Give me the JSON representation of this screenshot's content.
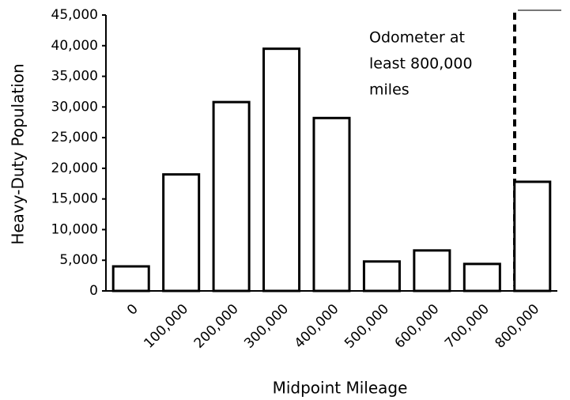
{
  "chart_data": {
    "type": "bar",
    "x_label": "Midpoint Mileage",
    "y_label": "Heavy-Duty Population",
    "annotation": [
      "Odometer at",
      "least 800,000",
      "miles"
    ],
    "categories": [
      "0",
      "100,000",
      "200,000",
      "300,000",
      "400,000",
      "500,000",
      "600,000",
      "700,000",
      "800,000"
    ],
    "values": [
      4000,
      19000,
      30800,
      39500,
      28200,
      4800,
      6600,
      4400,
      17800
    ],
    "color": "#ffffff",
    "ylim": [
      0,
      45000
    ],
    "yticks": [
      0,
      {
        "value": 5000,
        "label": "5,000"
      },
      {
        "value": 10000,
        "label": "10,000"
      },
      {
        "value": 15000,
        "label": "15,000"
      },
      {
        "value": 20000,
        "label": "20,000"
      },
      {
        "value": 25000,
        "label": "25,000"
      },
      {
        "value": 30000,
        "label": "30,000"
      },
      {
        "value": 35000,
        "label": "35,000"
      },
      {
        "value": 40000,
        "label": "40,000"
      },
      {
        "value": 45000,
        "label": "45,000"
      }
    ],
    "grid": false
  }
}
